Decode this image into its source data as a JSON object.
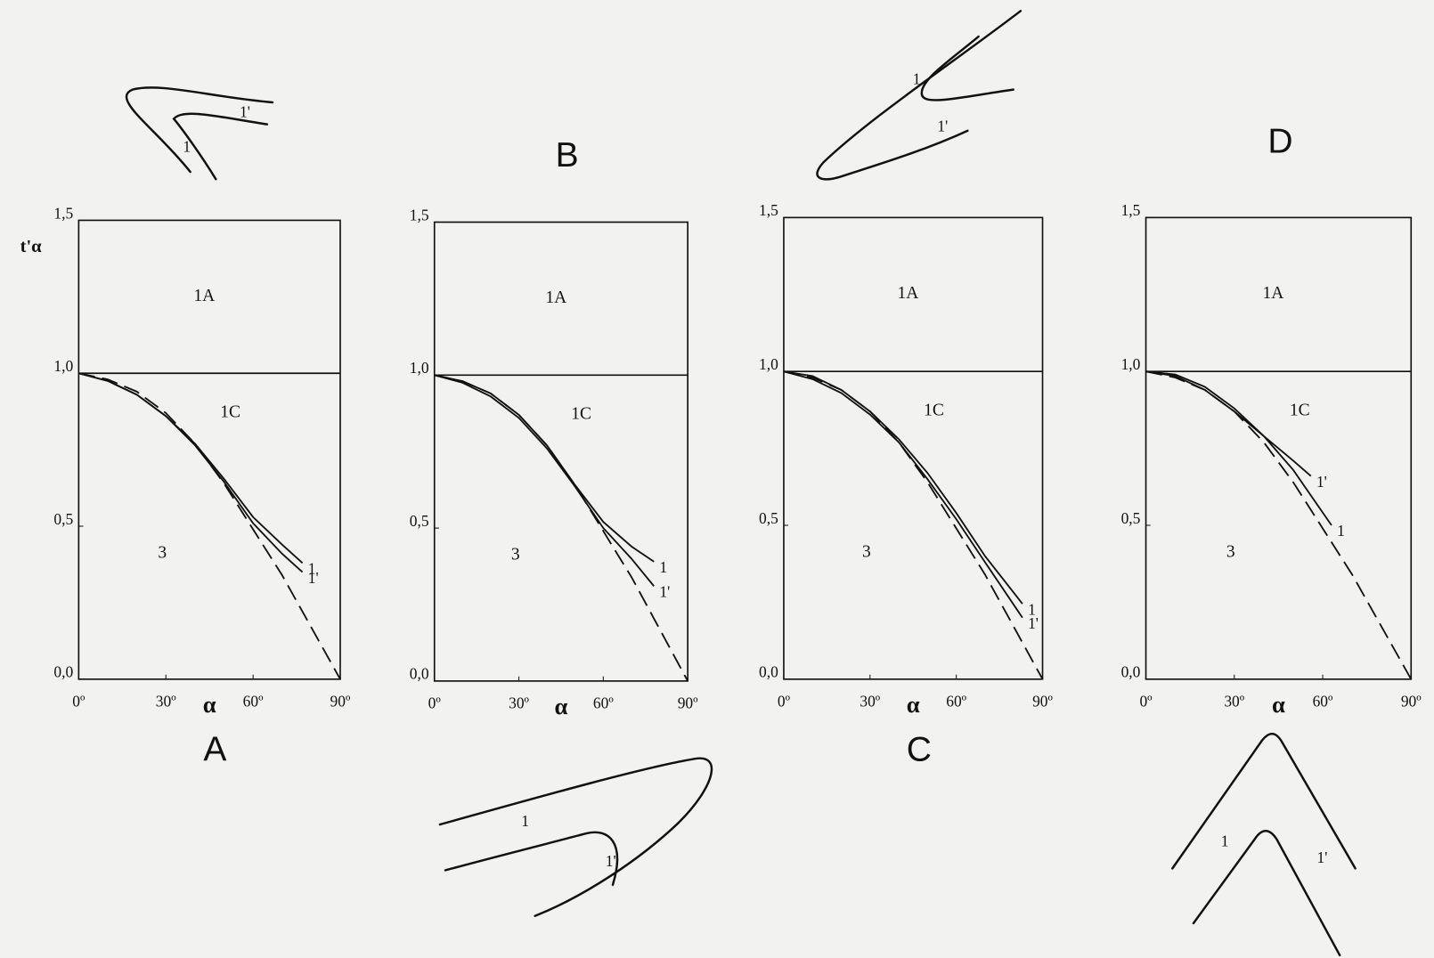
{
  "chart_data": [
    {
      "type": "line",
      "title": "A",
      "xlabel": "α",
      "ylabel": "t'α",
      "xlim": [
        0,
        90
      ],
      "ylim": [
        0,
        1.5
      ],
      "xticks": [
        {
          "value": 0,
          "label": "0º"
        },
        {
          "value": 30,
          "label": "30º"
        },
        {
          "value": 60,
          "label": "60º"
        },
        {
          "value": 90,
          "label": "90º"
        }
      ],
      "yticks": [
        {
          "value": 0,
          "label": "0,0"
        },
        {
          "value": 0.5,
          "label": "0,5"
        },
        {
          "value": 1,
          "label": "1,0"
        },
        {
          "value": 1.5,
          "label": "1,5"
        }
      ],
      "reference_line": 1,
      "annotations": [
        "1A",
        "1C",
        "3"
      ],
      "series": [
        {
          "name": "1",
          "color": "#111111",
          "x": [
            0,
            10,
            20,
            30,
            40,
            50,
            60,
            70,
            77
          ],
          "values": [
            1,
            0.975,
            0.93,
            0.86,
            0.77,
            0.655,
            0.53,
            0.44,
            0.38
          ]
        },
        {
          "name": "1'",
          "color": "#111111",
          "x": [
            0,
            10,
            20,
            30,
            40,
            50,
            60,
            70,
            77
          ],
          "values": [
            1,
            0.975,
            0.93,
            0.86,
            0.765,
            0.645,
            0.51,
            0.41,
            0.35
          ]
        },
        {
          "color": "#111111",
          "dashed": true,
          "x": [
            0,
            10,
            20,
            30,
            40,
            50,
            60,
            70,
            80,
            90
          ],
          "values": [
            1,
            0.98,
            0.94,
            0.87,
            0.77,
            0.64,
            0.49,
            0.34,
            0.17,
            0
          ]
        }
      ]
    },
    {
      "type": "line",
      "title": "B",
      "xlabel": "α",
      "xlim": [
        0,
        90
      ],
      "ylim": [
        0,
        1.5
      ],
      "xticks": [
        {
          "value": 0,
          "label": "0º"
        },
        {
          "value": 30,
          "label": "30º"
        },
        {
          "value": 60,
          "label": "60º"
        },
        {
          "value": 90,
          "label": "90º"
        }
      ],
      "yticks": [
        {
          "value": 0,
          "label": "0,0"
        },
        {
          "value": 0.5,
          "label": "0,5"
        },
        {
          "value": 1,
          "label": "1,0"
        },
        {
          "value": 1.5,
          "label": "1,5"
        }
      ],
      "reference_line": 1,
      "annotations": [
        "1A",
        "1C",
        "3"
      ],
      "series": [
        {
          "name": "1",
          "color": "#111111",
          "x": [
            0,
            10,
            20,
            30,
            40,
            50,
            60,
            70,
            78
          ],
          "values": [
            1,
            0.98,
            0.94,
            0.87,
            0.77,
            0.64,
            0.52,
            0.44,
            0.39
          ]
        },
        {
          "name": "1'",
          "color": "#111111",
          "x": [
            0,
            10,
            20,
            30,
            40,
            50,
            60,
            70,
            78
          ],
          "values": [
            1,
            0.975,
            0.93,
            0.86,
            0.76,
            0.635,
            0.5,
            0.4,
            0.31
          ]
        },
        {
          "color": "#111111",
          "dashed": true,
          "x": [
            0,
            10,
            20,
            30,
            40,
            50,
            60,
            70,
            80,
            90
          ],
          "values": [
            1,
            0.98,
            0.94,
            0.87,
            0.77,
            0.64,
            0.49,
            0.34,
            0.17,
            0
          ]
        }
      ]
    },
    {
      "type": "line",
      "title": "C",
      "xlabel": "α",
      "xlim": [
        0,
        90
      ],
      "ylim": [
        0,
        1.5
      ],
      "xticks": [
        {
          "value": 0,
          "label": "0º"
        },
        {
          "value": 30,
          "label": "30º"
        },
        {
          "value": 60,
          "label": "60º"
        },
        {
          "value": 90,
          "label": "90º"
        }
      ],
      "yticks": [
        {
          "value": 0,
          "label": "0,0"
        },
        {
          "value": 0.5,
          "label": "0,5"
        },
        {
          "value": 1,
          "label": "1,0"
        },
        {
          "value": 1.5,
          "label": "1,5"
        }
      ],
      "reference_line": 1,
      "annotations": [
        "1A",
        "1C",
        "3"
      ],
      "series": [
        {
          "name": "1",
          "color": "#111111",
          "x": [
            0,
            10,
            20,
            30,
            40,
            50,
            60,
            70,
            83
          ],
          "values": [
            1,
            0.985,
            0.94,
            0.87,
            0.78,
            0.67,
            0.54,
            0.4,
            0.245
          ]
        },
        {
          "name": "1'",
          "color": "#111111",
          "x": [
            0,
            10,
            20,
            30,
            40,
            50,
            60,
            70,
            83
          ],
          "values": [
            1,
            0.975,
            0.93,
            0.86,
            0.77,
            0.65,
            0.52,
            0.38,
            0.2
          ]
        },
        {
          "color": "#111111",
          "dashed": true,
          "x": [
            0,
            10,
            20,
            30,
            40,
            50,
            60,
            70,
            80,
            90
          ],
          "values": [
            1,
            0.98,
            0.94,
            0.87,
            0.77,
            0.64,
            0.49,
            0.34,
            0.17,
            0
          ]
        }
      ]
    },
    {
      "type": "line",
      "title": "D",
      "xlabel": "α",
      "xlim": [
        0,
        90
      ],
      "ylim": [
        0,
        1.5
      ],
      "xticks": [
        {
          "value": 0,
          "label": "0º"
        },
        {
          "value": 30,
          "label": "30º"
        },
        {
          "value": 60,
          "label": "60º"
        },
        {
          "value": 90,
          "label": "90º"
        }
      ],
      "yticks": [
        {
          "value": 0,
          "label": "0,0"
        },
        {
          "value": 0.5,
          "label": "0,5"
        },
        {
          "value": 1,
          "label": "1,0"
        },
        {
          "value": 1.5,
          "label": "1,5"
        }
      ],
      "reference_line": 1,
      "annotations": [
        "1A",
        "1C",
        "3"
      ],
      "series": [
        {
          "name": "1",
          "color": "#111111",
          "x": [
            0,
            10,
            20,
            30,
            40,
            50,
            63
          ],
          "values": [
            1,
            0.99,
            0.95,
            0.88,
            0.79,
            0.68,
            0.5
          ]
        },
        {
          "name": "1'",
          "color": "#111111",
          "x": [
            0,
            10,
            20,
            30,
            40,
            50,
            56
          ],
          "values": [
            1,
            0.985,
            0.94,
            0.87,
            0.79,
            0.71,
            0.66
          ]
        },
        {
          "color": "#111111",
          "dashed": true,
          "x": [
            0,
            10,
            20,
            30,
            40,
            50,
            60,
            70,
            80,
            90
          ],
          "values": [
            1,
            0.98,
            0.94,
            0.87,
            0.77,
            0.64,
            0.49,
            0.34,
            0.17,
            0
          ]
        }
      ]
    }
  ]
}
